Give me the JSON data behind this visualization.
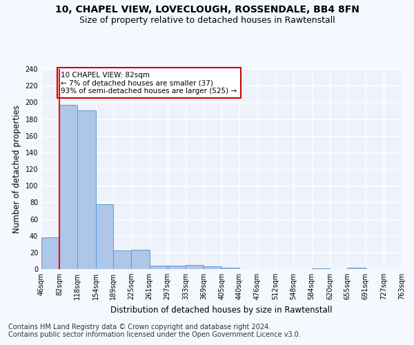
{
  "title": "10, CHAPEL VIEW, LOVECLOUGH, ROSSENDALE, BB4 8FN",
  "subtitle": "Size of property relative to detached houses in Rawtenstall",
  "xlabel": "Distribution of detached houses by size in Rawtenstall",
  "ylabel": "Number of detached properties",
  "bar_heights": [
    38,
    197,
    190,
    78,
    22,
    23,
    4,
    4,
    5,
    3,
    2,
    0,
    0,
    0,
    0,
    1,
    0,
    2,
    0,
    0
  ],
  "bin_edges": [
    46,
    82,
    118,
    154,
    189,
    225,
    261,
    297,
    333,
    369,
    405,
    440,
    476,
    512,
    548,
    584,
    620,
    655,
    691,
    727,
    763
  ],
  "tick_labels": [
    "46sqm",
    "82sqm",
    "118sqm",
    "154sqm",
    "189sqm",
    "225sqm",
    "261sqm",
    "297sqm",
    "333sqm",
    "369sqm",
    "405sqm",
    "440sqm",
    "476sqm",
    "512sqm",
    "548sqm",
    "584sqm",
    "620sqm",
    "655sqm",
    "691sqm",
    "727sqm",
    "763sqm"
  ],
  "bar_color": "#aec6e8",
  "bar_edge_color": "#5b9bd5",
  "red_line_x": 82,
  "annotation_text": "10 CHAPEL VIEW: 82sqm\n← 7% of detached houses are smaller (37)\n93% of semi-detached houses are larger (525) →",
  "annotation_box_color": "#ffffff",
  "annotation_box_edge_color": "#cc0000",
  "ylim": [
    0,
    240
  ],
  "yticks": [
    0,
    20,
    40,
    60,
    80,
    100,
    120,
    140,
    160,
    180,
    200,
    220,
    240
  ],
  "footer_line1": "Contains HM Land Registry data © Crown copyright and database right 2024.",
  "footer_line2": "Contains public sector information licensed under the Open Government Licence v3.0.",
  "bg_color": "#eef2fa",
  "grid_color": "#ffffff",
  "title_fontsize": 10,
  "subtitle_fontsize": 9,
  "axis_label_fontsize": 8.5,
  "tick_fontsize": 7,
  "footer_fontsize": 7,
  "annotation_fontsize": 7.5
}
